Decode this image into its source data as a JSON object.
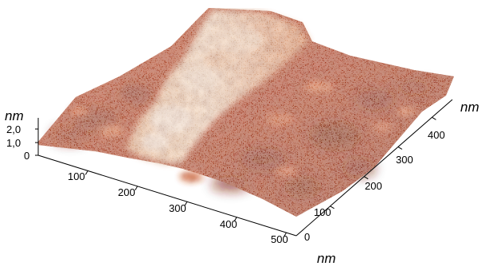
{
  "figure": {
    "z_axis": {
      "unit": "nm",
      "ticks": [
        "2,0",
        "1,0",
        "0"
      ]
    },
    "x_axis": {
      "unit": "nm",
      "ticks": [
        "100",
        "200",
        "300",
        "400",
        "500"
      ]
    },
    "y_axis": {
      "unit": "nm",
      "ticks": [
        "0",
        "100",
        "200",
        "300",
        "400"
      ]
    },
    "colors": {
      "low": "#7a1e0c",
      "mid": "#c8522a",
      "high": "#f4d9bf",
      "peak": "#fbeedf"
    }
  }
}
